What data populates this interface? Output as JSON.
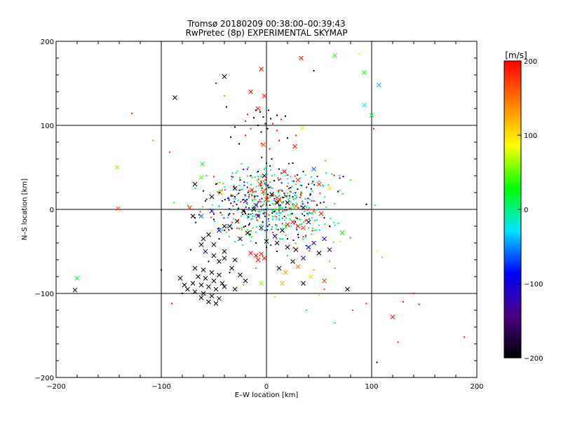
{
  "chart_data": {
    "type": "scatter",
    "title": "Tromsø 20180209 00:38:00–00:39:43",
    "subtitle": "RwPretec (8p) EXPERIMENTAL SKYMAP",
    "xlabel": "E–W location [km]",
    "ylabel": "N–S location [km]",
    "xlim": [
      -200,
      200
    ],
    "ylim": [
      -200,
      200
    ],
    "xticks": [
      -200,
      -100,
      0,
      100,
      200
    ],
    "yticks": [
      -200,
      -100,
      0,
      100,
      200
    ],
    "grid_lines": [
      -100,
      0,
      100
    ],
    "colorbar": {
      "label": "[m/s]",
      "range": [
        -200,
        200
      ],
      "ticks": [
        200,
        100,
        0,
        -100,
        -200
      ],
      "colormap": [
        "#000000",
        "#4b0082",
        "#0000ff",
        "#00e5ff",
        "#00ff00",
        "#ffff00",
        "#ff8000",
        "#ff0000"
      ]
    },
    "series": [
      {
        "marker": "x",
        "points": [
          [
            -40,
            158,
            -200
          ],
          [
            -87,
            133,
            -200
          ],
          [
            -5,
            167,
            195
          ],
          [
            -15,
            140,
            195
          ],
          [
            -8,
            120,
            195
          ],
          [
            33,
            180,
            190
          ],
          [
            65,
            183,
            40
          ],
          [
            93,
            163,
            30
          ],
          [
            107,
            148,
            -40
          ],
          [
            100,
            112,
            20
          ],
          [
            93,
            124,
            -30
          ],
          [
            34,
            97,
            95
          ],
          [
            27,
            75,
            190
          ],
          [
            -3,
            77,
            170
          ],
          [
            -142,
            50,
            60
          ],
          [
            -61,
            54,
            30
          ],
          [
            -62,
            38,
            45
          ],
          [
            -141,
            1,
            175
          ],
          [
            -73,
            2,
            180
          ],
          [
            -180,
            -82,
            20
          ],
          [
            -182,
            -96,
            -200
          ],
          [
            -52,
            15,
            -200
          ],
          [
            -44,
            20,
            150
          ],
          [
            -30,
            25,
            -200
          ],
          [
            -14,
            23,
            190
          ],
          [
            -6,
            30,
            185
          ],
          [
            -2,
            40,
            -200
          ],
          [
            17,
            45,
            195
          ],
          [
            30,
            35,
            185
          ],
          [
            45,
            48,
            -60
          ],
          [
            50,
            30,
            190
          ],
          [
            60,
            25,
            100
          ],
          [
            -3,
            21,
            175
          ],
          [
            5,
            18,
            -200
          ],
          [
            12,
            12,
            180
          ],
          [
            20,
            8,
            -200
          ],
          [
            28,
            4,
            170
          ],
          [
            35,
            2,
            -200
          ],
          [
            45,
            -2,
            160
          ],
          [
            52,
            -5,
            190
          ],
          [
            -20,
            10,
            -100
          ],
          [
            -12,
            0,
            -200
          ],
          [
            -8,
            -8,
            -150
          ],
          [
            -28,
            -14,
            -200
          ],
          [
            -35,
            -20,
            -180
          ],
          [
            -45,
            -25,
            -100
          ],
          [
            -55,
            -30,
            -200
          ],
          [
            -60,
            -35,
            -180
          ],
          [
            -50,
            -42,
            -200
          ],
          [
            -40,
            -50,
            -200
          ],
          [
            -62,
            -42,
            -200
          ],
          [
            -58,
            -50,
            -160
          ],
          [
            -50,
            -55,
            -200
          ],
          [
            -45,
            -62,
            -200
          ],
          [
            -68,
            -70,
            -200
          ],
          [
            -60,
            -72,
            -200
          ],
          [
            -52,
            -75,
            -200
          ],
          [
            -45,
            -78,
            -200
          ],
          [
            -65,
            -80,
            -200
          ],
          [
            -58,
            -82,
            -200
          ],
          [
            -50,
            -85,
            -200
          ],
          [
            -42,
            -88,
            -200
          ],
          [
            -70,
            -88,
            -200
          ],
          [
            -62,
            -90,
            -200
          ],
          [
            -55,
            -92,
            -200
          ],
          [
            -48,
            -95,
            -200
          ],
          [
            -40,
            -92,
            -200
          ],
          [
            -75,
            -95,
            -200
          ],
          [
            -68,
            -98,
            -200
          ],
          [
            -60,
            -100,
            -200
          ],
          [
            -52,
            -103,
            -200
          ],
          [
            -45,
            -106,
            -200
          ],
          [
            -55,
            -110,
            -200
          ],
          [
            -48,
            -112,
            -200
          ],
          [
            -62,
            -105,
            -200
          ],
          [
            -78,
            -90,
            -200
          ],
          [
            -82,
            -82,
            -200
          ],
          [
            -30,
            -95,
            -200
          ],
          [
            -20,
            -85,
            -200
          ],
          [
            -25,
            -78,
            -200
          ],
          [
            -15,
            -52,
            195
          ],
          [
            -10,
            -55,
            195
          ],
          [
            -5,
            -53,
            190
          ],
          [
            -2,
            -58,
            195
          ],
          [
            -8,
            -60,
            195
          ],
          [
            10,
            -40,
            -200
          ],
          [
            20,
            -45,
            -200
          ],
          [
            28,
            -48,
            -200
          ],
          [
            40,
            -45,
            -100
          ],
          [
            45,
            -40,
            -120
          ],
          [
            55,
            -35,
            -100
          ],
          [
            60,
            -48,
            -150
          ],
          [
            50,
            -52,
            -200
          ],
          [
            35,
            -58,
            -120
          ],
          [
            25,
            -62,
            -200
          ],
          [
            12,
            -70,
            -200
          ],
          [
            30,
            -68,
            150
          ],
          [
            18,
            -75,
            130
          ],
          [
            42,
            -80,
            100
          ],
          [
            35,
            -88,
            -200
          ],
          [
            15,
            -88,
            120
          ],
          [
            55,
            -85,
            170
          ],
          [
            77,
            -95,
            -200
          ],
          [
            72,
            -28,
            30
          ],
          [
            -5,
            -88,
            60
          ],
          [
            -30,
            -60,
            -200
          ],
          [
            -40,
            -58,
            -180
          ],
          [
            -33,
            -70,
            -200
          ],
          [
            -62,
            -8,
            -60
          ],
          [
            -52,
            -2,
            -100
          ],
          [
            -22,
            -2,
            -200
          ],
          [
            -10,
            5,
            -150
          ],
          [
            0,
            12,
            180
          ],
          [
            10,
            8,
            -200
          ],
          [
            20,
            -18,
            190
          ],
          [
            25,
            -15,
            185
          ],
          [
            30,
            -20,
            190
          ],
          [
            35,
            -22,
            180
          ],
          [
            40,
            -15,
            -200
          ],
          [
            15,
            -25,
            -200
          ],
          [
            8,
            -32,
            -150
          ],
          [
            0,
            -38,
            -200
          ],
          [
            -18,
            -28,
            -200
          ],
          [
            -25,
            -35,
            -160
          ],
          [
            -5,
            -22,
            -180
          ],
          [
            120,
            -128,
            195
          ],
          [
            -2,
            135,
            195
          ],
          [
            -40,
            -20,
            -200
          ],
          [
            -70,
            -8,
            -200
          ],
          [
            -68,
            30,
            -200
          ]
        ]
      },
      {
        "marker": "dot",
        "points": [
          [
            -48,
            150,
            195
          ],
          [
            -40,
            135,
            140
          ],
          [
            -38,
            122,
            -200
          ],
          [
            -10,
            118,
            -200
          ],
          [
            -12,
            109,
            -200
          ],
          [
            -6,
            116,
            -200
          ],
          [
            -3,
            110,
            -200
          ],
          [
            2,
            118,
            -200
          ],
          [
            4,
            108,
            -200
          ],
          [
            -1,
            102,
            -200
          ],
          [
            10,
            112,
            -200
          ],
          [
            14,
            107,
            195
          ],
          [
            18,
            111,
            -200
          ],
          [
            -18,
            113,
            195
          ],
          [
            -20,
            105,
            180
          ],
          [
            -8,
            100,
            -200
          ],
          [
            1,
            96,
            -200
          ],
          [
            6,
            102,
            195
          ],
          [
            -5,
            92,
            -200
          ],
          [
            10,
            94,
            190
          ],
          [
            -15,
            96,
            180
          ],
          [
            -20,
            88,
            190
          ],
          [
            20,
            85,
            -200
          ],
          [
            28,
            88,
            195
          ],
          [
            -26,
            78,
            -200
          ],
          [
            12,
            82,
            195
          ],
          [
            -5,
            78,
            170
          ],
          [
            3,
            72,
            190
          ],
          [
            -92,
            68,
            175
          ],
          [
            -108,
            82,
            40
          ],
          [
            -128,
            114,
            195
          ],
          [
            -34,
            86,
            -200
          ],
          [
            -30,
            98,
            -200
          ],
          [
            45,
            165,
            -200
          ],
          [
            88,
            185,
            100
          ],
          [
            102,
            96,
            190
          ],
          [
            -88,
            8,
            20
          ],
          [
            -68,
            -10,
            -200
          ],
          [
            -57,
            12,
            -180
          ],
          [
            -72,
            -48,
            -200
          ],
          [
            -100,
            -72,
            -200
          ],
          [
            -80,
            -100,
            -200
          ],
          [
            -90,
            -112,
            195
          ],
          [
            -55,
            -62,
            -200
          ],
          [
            -35,
            -75,
            -200
          ],
          [
            -22,
            -90,
            50
          ],
          [
            8,
            -104,
            60
          ],
          [
            38,
            -120,
            20
          ],
          [
            65,
            -135,
            20
          ],
          [
            82,
            -120,
            170
          ],
          [
            95,
            -112,
            190
          ],
          [
            105,
            -50,
            80
          ],
          [
            110,
            -57,
            120
          ],
          [
            125,
            -158,
            190
          ],
          [
            140,
            -100,
            195
          ],
          [
            145,
            -113,
            195
          ],
          [
            105,
            -182,
            -200
          ],
          [
            95,
            6,
            -200
          ],
          [
            103,
            5,
            0
          ],
          [
            65,
            -70,
            150
          ],
          [
            72,
            18,
            60
          ],
          [
            80,
            35,
            40
          ],
          [
            56,
            58,
            40
          ],
          [
            62,
            42,
            20
          ],
          [
            -58,
            10,
            -150
          ],
          [
            -45,
            -35,
            -200
          ],
          [
            -42,
            10,
            -120
          ],
          [
            -48,
            30,
            -200
          ],
          [
            -50,
            -12,
            -200
          ],
          [
            -20,
            -5,
            -200
          ],
          [
            -30,
            15,
            -200
          ],
          [
            -25,
            35,
            -200
          ],
          [
            -15,
            40,
            -200
          ],
          [
            -8,
            45,
            -200
          ],
          [
            0,
            55,
            -200
          ],
          [
            5,
            60,
            -200
          ],
          [
            12,
            48,
            -200
          ],
          [
            25,
            55,
            -200
          ],
          [
            35,
            45,
            -200
          ],
          [
            40,
            30,
            -200
          ],
          [
            42,
            18,
            -200
          ],
          [
            48,
            5,
            -200
          ],
          [
            55,
            -10,
            -200
          ],
          [
            30,
            -30,
            -200
          ],
          [
            20,
            -35,
            -200
          ],
          [
            10,
            -50,
            -200
          ],
          [
            0,
            -45,
            -200
          ],
          [
            -10,
            -40,
            -200
          ],
          [
            -20,
            -20,
            -200
          ],
          [
            -35,
            -5,
            -200
          ],
          [
            -45,
            20,
            -200
          ],
          [
            15,
            22,
            -200
          ],
          [
            25,
            15,
            -200
          ],
          [
            60,
            -20,
            -200
          ],
          [
            -60,
            22,
            -200
          ],
          [
            188,
            -152,
            195
          ],
          [
            130,
            -110,
            190
          ],
          [
            -57,
            40,
            20
          ],
          [
            -10,
            -70,
            20
          ],
          [
            20,
            -55,
            20
          ],
          [
            70,
            -38,
            100
          ],
          [
            60,
            -62,
            130
          ],
          [
            45,
            -72,
            140
          ],
          [
            55,
            -95,
            170
          ],
          [
            50,
            -102,
            100
          ]
        ]
      }
    ],
    "cloud": {
      "center": [
        5,
        5
      ],
      "spread": [
        28,
        22
      ],
      "count": 520
    }
  }
}
